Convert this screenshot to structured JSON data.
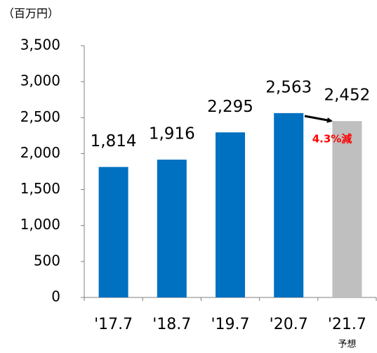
{
  "chart_data": {
    "type": "bar",
    "y_axis_label": "（百万円）",
    "categories": [
      "'17.7",
      "'18.7",
      "'19.7",
      "'20.7",
      "'21.7"
    ],
    "category_note": "予想",
    "values": [
      1814,
      1916,
      2295,
      2563,
      2452
    ],
    "value_labels": [
      "1,814",
      "1,916",
      "2,295",
      "2,563",
      "2,452"
    ],
    "colors": [
      "#0070c0",
      "#0070c0",
      "#0070c0",
      "#0070c0",
      "#bfbfbf"
    ],
    "annotation": "4.3%減",
    "ylim": [
      0,
      3500
    ],
    "yticks": [
      0,
      500,
      {
        "value": 1000,
        "label": "1,000"
      },
      {
        "value": 1500,
        "label": "1,500"
      },
      {
        "value": 2000,
        "label": "2,000"
      },
      {
        "value": 2500,
        "label": "2,500"
      },
      {
        "value": 3000,
        "label": "3,000"
      },
      {
        "value": 3500,
        "label": "3,500"
      }
    ]
  }
}
